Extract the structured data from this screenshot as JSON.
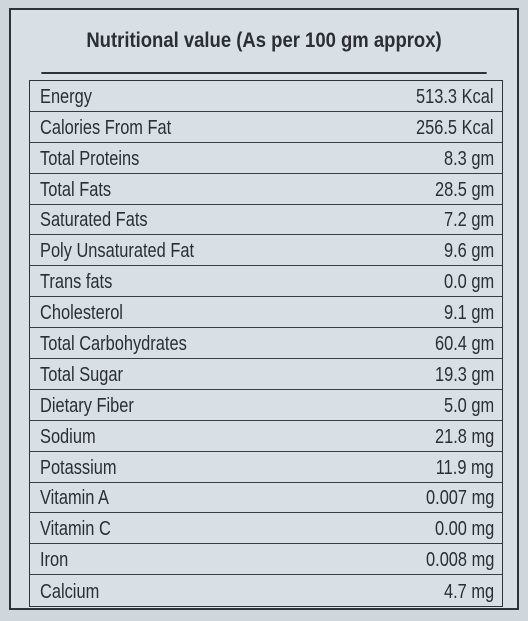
{
  "title": "Nutritional value (As per 100 gm approx)",
  "table": {
    "rows": [
      [
        "Energy",
        "513.3 Kcal"
      ],
      [
        "Calories From Fat",
        "256.5 Kcal"
      ],
      [
        "Total Proteins",
        "8.3 gm"
      ],
      [
        "Total Fats",
        "28.5 gm"
      ],
      [
        "Saturated Fats",
        "7.2 gm"
      ],
      [
        "Poly Unsaturated Fat",
        "9.6 gm"
      ],
      [
        "Trans fats",
        "0.0 gm"
      ],
      [
        "Cholesterol",
        "9.1 gm"
      ],
      [
        "Total Carbohydrates",
        "60.4 gm"
      ],
      [
        "Total Sugar",
        "19.3 gm"
      ],
      [
        "Dietary Fiber",
        "5.0 gm"
      ],
      [
        "Sodium",
        "21.8 mg"
      ],
      [
        "Potassium",
        "11.9 mg"
      ],
      [
        "Vitamin A",
        "0.007 mg"
      ],
      [
        "Vitamin C",
        "0.00 mg"
      ],
      [
        "Iron",
        "0.008 mg"
      ],
      [
        "Calcium",
        "4.7 mg"
      ]
    ]
  }
}
